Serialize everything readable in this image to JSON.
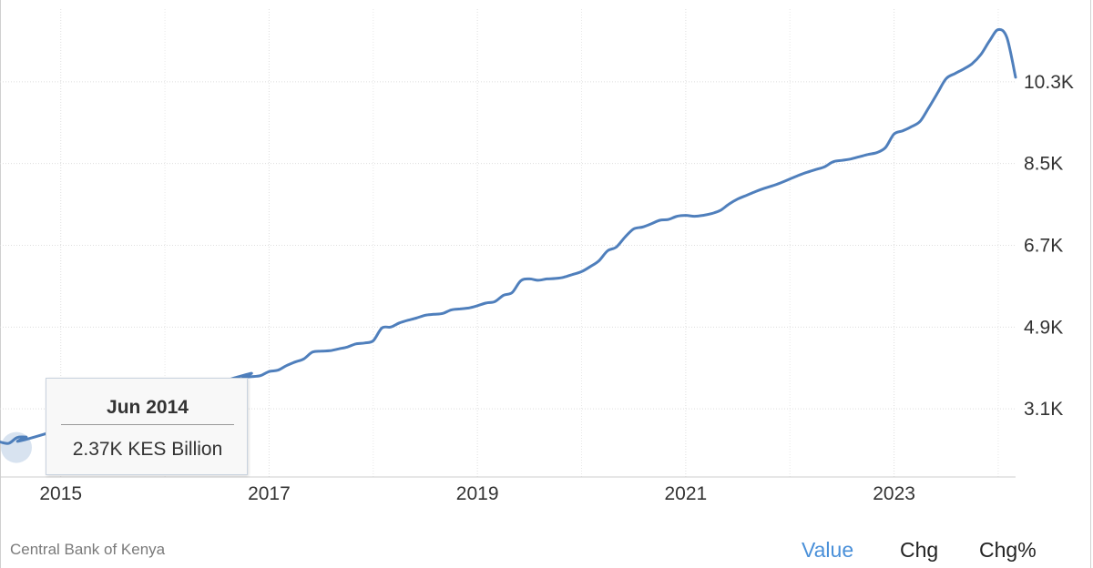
{
  "chart_data": {
    "type": "line",
    "title": "",
    "xlabel": "",
    "ylabel": "",
    "unit": "KES Billion",
    "x_ticks": [
      "2015",
      "2017",
      "2019",
      "2021",
      "2023"
    ],
    "y_ticks": [
      {
        "value": 3100,
        "label": "3.1K"
      },
      {
        "value": 4900,
        "label": "4.9K"
      },
      {
        "value": 6700,
        "label": "6.7K"
      },
      {
        "value": 8500,
        "label": "8.5K"
      },
      {
        "value": 10300,
        "label": "10.3K"
      }
    ],
    "xlim": [
      "2014-06",
      "2024-03"
    ],
    "ylim": [
      1600,
      11900
    ],
    "grid": "dotted",
    "line_color": "#4f7fbc",
    "series": [
      {
        "name": "",
        "points": [
          [
            "2014-06",
            2370
          ],
          [
            "2014-07",
            2340
          ],
          [
            "2014-08",
            2470
          ],
          [
            "2014-09",
            2480
          ],
          [
            "2014-10",
            2480
          ],
          [
            "2016-09",
            3780
          ],
          [
            "2016-10",
            3800
          ],
          [
            "2016-11",
            3810
          ],
          [
            "2016-12",
            3830
          ],
          [
            "2017-01",
            3920
          ],
          [
            "2017-02",
            3950
          ],
          [
            "2017-03",
            4050
          ],
          [
            "2017-04",
            4130
          ],
          [
            "2017-05",
            4200
          ],
          [
            "2017-06",
            4350
          ],
          [
            "2017-07",
            4370
          ],
          [
            "2017-08",
            4380
          ],
          [
            "2017-09",
            4420
          ],
          [
            "2017-10",
            4460
          ],
          [
            "2017-11",
            4530
          ],
          [
            "2017-12",
            4550
          ],
          [
            "2018-01",
            4600
          ],
          [
            "2018-02",
            4880
          ],
          [
            "2018-03",
            4900
          ],
          [
            "2018-04",
            4990
          ],
          [
            "2018-05",
            5050
          ],
          [
            "2018-06",
            5100
          ],
          [
            "2018-07",
            5160
          ],
          [
            "2018-08",
            5180
          ],
          [
            "2018-09",
            5200
          ],
          [
            "2018-10",
            5280
          ],
          [
            "2018-11",
            5300
          ],
          [
            "2018-12",
            5320
          ],
          [
            "2019-01",
            5370
          ],
          [
            "2019-02",
            5430
          ],
          [
            "2019-03",
            5460
          ],
          [
            "2019-04",
            5600
          ],
          [
            "2019-05",
            5660
          ],
          [
            "2019-06",
            5920
          ],
          [
            "2019-07",
            5960
          ],
          [
            "2019-08",
            5930
          ],
          [
            "2019-09",
            5960
          ],
          [
            "2019-10",
            5970
          ],
          [
            "2019-11",
            6000
          ],
          [
            "2019-12",
            6060
          ],
          [
            "2020-01",
            6120
          ],
          [
            "2020-02",
            6230
          ],
          [
            "2020-03",
            6360
          ],
          [
            "2020-04",
            6580
          ],
          [
            "2020-05",
            6660
          ],
          [
            "2020-06",
            6880
          ],
          [
            "2020-07",
            7060
          ],
          [
            "2020-08",
            7100
          ],
          [
            "2020-09",
            7170
          ],
          [
            "2020-10",
            7250
          ],
          [
            "2020-11",
            7270
          ],
          [
            "2020-12",
            7340
          ],
          [
            "2021-01",
            7360
          ],
          [
            "2021-02",
            7340
          ],
          [
            "2021-03",
            7360
          ],
          [
            "2021-04",
            7400
          ],
          [
            "2021-05",
            7470
          ],
          [
            "2021-06",
            7610
          ],
          [
            "2021-07",
            7720
          ],
          [
            "2021-08",
            7800
          ],
          [
            "2021-09",
            7880
          ],
          [
            "2021-10",
            7950
          ],
          [
            "2021-11",
            8010
          ],
          [
            "2021-12",
            8080
          ],
          [
            "2022-01",
            8160
          ],
          [
            "2022-02",
            8240
          ],
          [
            "2022-03",
            8310
          ],
          [
            "2022-04",
            8370
          ],
          [
            "2022-05",
            8430
          ],
          [
            "2022-06",
            8540
          ],
          [
            "2022-07",
            8570
          ],
          [
            "2022-08",
            8600
          ],
          [
            "2022-09",
            8650
          ],
          [
            "2022-10",
            8700
          ],
          [
            "2022-11",
            8740
          ],
          [
            "2022-12",
            8850
          ],
          [
            "2023-01",
            9150
          ],
          [
            "2023-02",
            9220
          ],
          [
            "2023-03",
            9310
          ],
          [
            "2023-04",
            9430
          ],
          [
            "2023-05",
            9730
          ],
          [
            "2023-06",
            10050
          ],
          [
            "2023-07",
            10370
          ],
          [
            "2023-08",
            10480
          ],
          [
            "2023-09",
            10580
          ],
          [
            "2023-10",
            10700
          ],
          [
            "2023-11",
            10900
          ],
          [
            "2023-12",
            11200
          ],
          [
            "2024-01",
            11450
          ],
          [
            "2024-02",
            11270
          ],
          [
            "2024-03",
            10400
          ]
        ]
      }
    ],
    "highlight": {
      "date": "2014-06",
      "value": 2370
    }
  },
  "tooltip": {
    "date": "Jun 2014",
    "value": "2.37K KES Billion"
  },
  "footer": {
    "source": "Central Bank of Kenya",
    "tabs": [
      {
        "label": "Value",
        "active": true
      },
      {
        "label": "Chg",
        "active": false
      },
      {
        "label": "Chg%",
        "active": false
      }
    ]
  }
}
